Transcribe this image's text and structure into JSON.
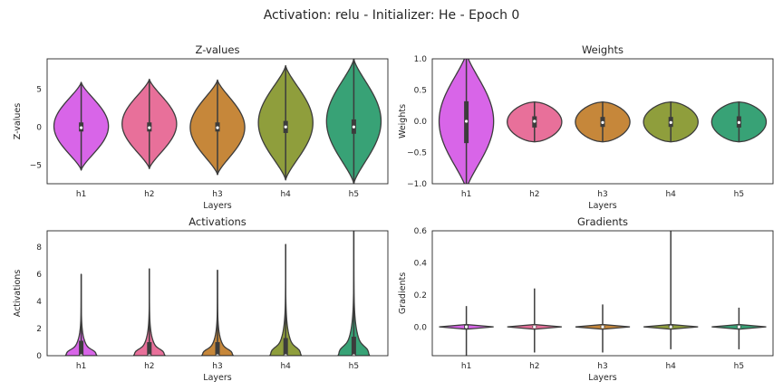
{
  "figure": {
    "suptitle": "Activation: relu - Initializer: He - Epoch 0"
  },
  "chart_data": [
    {
      "type": "violin",
      "title": "Z-values",
      "xlabel": "Layers",
      "ylabel": "Z-values",
      "categories": [
        "h1",
        "h2",
        "h3",
        "h4",
        "h5"
      ],
      "colors": [
        "#d865e8",
        "#e8709a",
        "#c6873a",
        "#8f9e3c",
        "#38a276"
      ],
      "ylim": [
        -7.5,
        9
      ],
      "yticks": [
        -5,
        0,
        5
      ],
      "ytick_labels": [
        "−5",
        "0",
        "5"
      ],
      "grid": false,
      "violins": [
        {
          "min": -5.7,
          "max": 5.9,
          "q1": -0.6,
          "median": -0.1,
          "q3": 0.6,
          "body": "symmetric",
          "width": 0.8
        },
        {
          "min": -5.5,
          "max": 6.3,
          "q1": -0.6,
          "median": -0.1,
          "q3": 0.6,
          "body": "symmetric",
          "width": 0.8
        },
        {
          "min": -6.3,
          "max": 6.2,
          "q1": -0.6,
          "median": -0.1,
          "q3": 0.6,
          "body": "symmetric",
          "width": 0.8
        },
        {
          "min": -7.0,
          "max": 8.1,
          "q1": -0.8,
          "median": 0.0,
          "q3": 0.8,
          "body": "symmetric",
          "width": 0.8
        },
        {
          "min": -7.5,
          "max": 9.0,
          "q1": -0.9,
          "median": 0.0,
          "q3": 1.0,
          "body": "symmetric",
          "width": 0.8
        }
      ]
    },
    {
      "type": "violin",
      "title": "Weights",
      "xlabel": "Layers",
      "ylabel": "Weights",
      "categories": [
        "h1",
        "h2",
        "h3",
        "h4",
        "h5"
      ],
      "colors": [
        "#d865e8",
        "#e8709a",
        "#c6873a",
        "#8f9e3c",
        "#38a276"
      ],
      "ylim": [
        -1.0,
        1.0
      ],
      "yticks": [
        -1.0,
        -0.5,
        0.0,
        0.5,
        1.0
      ],
      "ytick_labels": [
        "−1.0",
        "−0.5",
        "0.0",
        "0.5",
        "1.0"
      ],
      "grid": false,
      "violins": [
        {
          "min": -1.1,
          "max": 1.1,
          "q1": -0.35,
          "median": 0.0,
          "q3": 0.32,
          "body": "symmetric",
          "width": 0.8
        },
        {
          "min": -0.33,
          "max": 0.31,
          "q1": -0.1,
          "median": 0.0,
          "q3": 0.08,
          "body": "flat",
          "width": 0.8
        },
        {
          "min": -0.33,
          "max": 0.31,
          "q1": -0.09,
          "median": -0.02,
          "q3": 0.07,
          "body": "flat",
          "width": 0.8
        },
        {
          "min": -0.33,
          "max": 0.31,
          "q1": -0.09,
          "median": -0.02,
          "q3": 0.07,
          "body": "flat",
          "width": 0.8
        },
        {
          "min": -0.33,
          "max": 0.31,
          "q1": -0.1,
          "median": -0.02,
          "q3": 0.08,
          "body": "flat",
          "width": 0.8
        }
      ]
    },
    {
      "type": "violin",
      "title": "Activations",
      "xlabel": "Layers",
      "ylabel": "Activations",
      "categories": [
        "h1",
        "h2",
        "h3",
        "h4",
        "h5"
      ],
      "colors": [
        "#d865e8",
        "#e8709a",
        "#c6873a",
        "#8f9e3c",
        "#38a276"
      ],
      "ylim": [
        0,
        9.2
      ],
      "yticks": [
        0,
        2,
        4,
        6,
        8
      ],
      "ytick_labels": [
        "0",
        "2",
        "4",
        "6",
        "8"
      ],
      "grid": false,
      "violins": [
        {
          "min": 0.0,
          "max": 6.0,
          "q1": 0.0,
          "median": 0.0,
          "q3": 1.1,
          "body": "skewed",
          "width": 0.8
        },
        {
          "min": 0.0,
          "max": 6.4,
          "q1": 0.0,
          "median": 0.0,
          "q3": 1.0,
          "body": "skewed",
          "width": 0.8
        },
        {
          "min": 0.0,
          "max": 6.3,
          "q1": 0.0,
          "median": 0.0,
          "q3": 1.0,
          "body": "skewed",
          "width": 0.8
        },
        {
          "min": 0.0,
          "max": 8.2,
          "q1": 0.0,
          "median": 0.0,
          "q3": 1.3,
          "body": "skewed",
          "width": 0.8
        },
        {
          "min": 0.0,
          "max": 9.2,
          "q1": 0.0,
          "median": 0.0,
          "q3": 1.4,
          "body": "skewed",
          "width": 0.8
        }
      ]
    },
    {
      "type": "violin",
      "title": "Gradients",
      "xlabel": "Layers",
      "ylabel": "Gradients",
      "categories": [
        "h1",
        "h2",
        "h3",
        "h4",
        "h5"
      ],
      "colors": [
        "#d865e8",
        "#e8709a",
        "#c6873a",
        "#8f9e3c",
        "#38a276"
      ],
      "ylim": [
        -0.18,
        0.6
      ],
      "yticks": [
        0.0,
        0.2,
        0.4,
        0.6
      ],
      "ytick_labels": [
        "0.0",
        "0.2",
        "0.4",
        "0.6"
      ],
      "grid": false,
      "violins": [
        {
          "min": -0.18,
          "max": 0.13,
          "q1": -0.01,
          "median": 0.0,
          "q3": 0.01,
          "body": "spike",
          "width": 0.8
        },
        {
          "min": -0.16,
          "max": 0.24,
          "q1": -0.005,
          "median": 0.0,
          "q3": 0.005,
          "body": "spike",
          "width": 0.8
        },
        {
          "min": -0.16,
          "max": 0.14,
          "q1": -0.005,
          "median": 0.0,
          "q3": 0.005,
          "body": "spike",
          "width": 0.8
        },
        {
          "min": -0.14,
          "max": 0.6,
          "q1": -0.005,
          "median": 0.0,
          "q3": 0.01,
          "body": "spike",
          "width": 0.8
        },
        {
          "min": -0.14,
          "max": 0.12,
          "q1": -0.005,
          "median": 0.0,
          "q3": 0.005,
          "body": "spike",
          "width": 0.8
        }
      ]
    }
  ]
}
